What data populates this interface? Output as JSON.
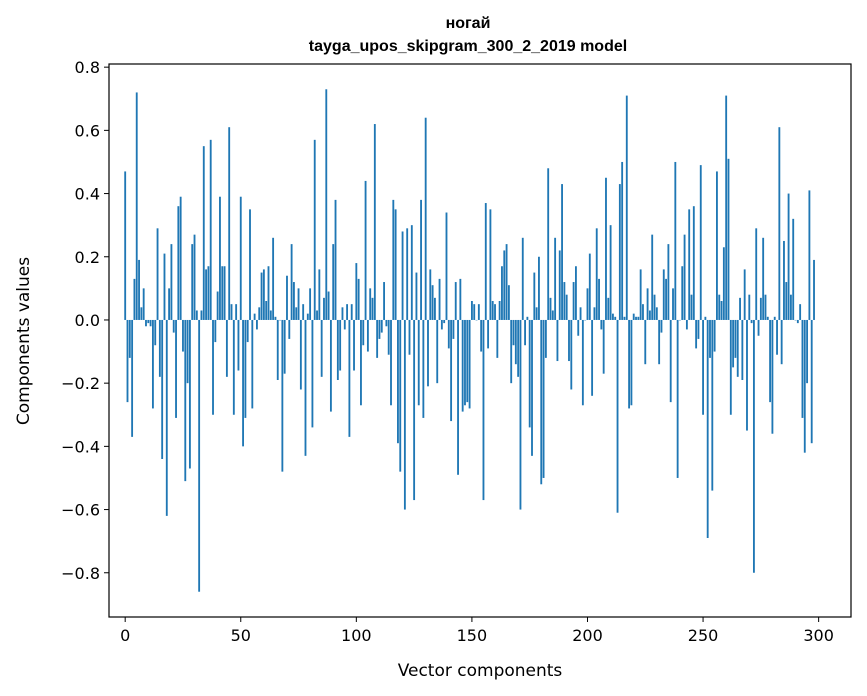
{
  "chart_data": {
    "type": "bar",
    "title": "ногай",
    "subtitle": "tayga_upos_skipgram_300_2_2019 model",
    "xlabel": "Vector components",
    "ylabel": "Components values",
    "xlim": [
      -7,
      314
    ],
    "ylim": [
      -0.94,
      0.81
    ],
    "x_ticks": [
      0,
      50,
      100,
      150,
      200,
      250,
      300
    ],
    "x_tick_labels": [
      "0",
      "50",
      "100",
      "150",
      "200",
      "250",
      "300"
    ],
    "y_ticks": [
      -0.8,
      -0.6,
      -0.4,
      -0.2,
      0.0,
      0.2,
      0.4,
      0.6,
      0.8
    ],
    "y_tick_labels": [
      "−0.8",
      "−0.6",
      "−0.4",
      "−0.2",
      "0.0",
      "0.2",
      "0.4",
      "0.6",
      "0.8"
    ],
    "bar_color": "#1f77b4",
    "values": [
      0.47,
      -0.26,
      -0.12,
      -0.37,
      0.13,
      0.72,
      0.19,
      0.04,
      0.1,
      -0.02,
      -0.01,
      -0.02,
      -0.28,
      -0.08,
      0.29,
      -0.18,
      -0.44,
      0.21,
      -0.62,
      0.1,
      0.24,
      -0.04,
      -0.31,
      0.36,
      0.39,
      -0.1,
      -0.51,
      -0.2,
      -0.47,
      0.24,
      0.27,
      0.03,
      -0.86,
      0.03,
      0.55,
      0.16,
      0.17,
      0.57,
      -0.3,
      -0.07,
      0.09,
      0.39,
      0.17,
      0.17,
      -0.18,
      0.61,
      0.05,
      -0.3,
      0.05,
      -0.16,
      0.39,
      -0.4,
      -0.31,
      -0.07,
      0.35,
      -0.28,
      0.02,
      -0.03,
      0.04,
      0.15,
      0.16,
      0.06,
      0.17,
      0.03,
      0.26,
      0.01,
      -0.19,
      0.0,
      -0.48,
      -0.17,
      0.14,
      -0.06,
      0.24,
      0.12,
      0.04,
      0.1,
      -0.22,
      0.05,
      -0.43,
      0.02,
      0.1,
      -0.34,
      0.57,
      0.03,
      0.16,
      -0.18,
      0.07,
      0.73,
      0.09,
      -0.29,
      0.24,
      0.38,
      -0.19,
      -0.16,
      0.04,
      -0.03,
      0.05,
      -0.37,
      0.05,
      -0.16,
      0.18,
      0.13,
      -0.27,
      -0.08,
      0.44,
      -0.1,
      0.1,
      0.07,
      0.62,
      -0.12,
      -0.06,
      -0.04,
      0.12,
      -0.02,
      -0.11,
      -0.27,
      0.38,
      0.35,
      -0.39,
      -0.48,
      0.28,
      -0.6,
      0.29,
      -0.11,
      0.3,
      -0.57,
      0.15,
      -0.27,
      0.38,
      -0.31,
      0.64,
      -0.21,
      0.16,
      0.11,
      0.07,
      -0.2,
      0.13,
      -0.03,
      -0.01,
      0.34,
      -0.09,
      -0.32,
      -0.06,
      0.12,
      -0.49,
      0.13,
      -0.29,
      -0.27,
      -0.26,
      -0.28,
      0.06,
      0.05,
      0.0,
      0.05,
      -0.1,
      -0.57,
      0.37,
      -0.09,
      0.35,
      0.06,
      0.05,
      -0.12,
      0.06,
      0.17,
      0.22,
      0.24,
      0.11,
      -0.2,
      -0.08,
      -0.14,
      -0.18,
      -0.6,
      0.26,
      -0.08,
      0.01,
      -0.34,
      -0.43,
      0.15,
      0.04,
      0.2,
      -0.52,
      -0.5,
      -0.12,
      0.48,
      0.07,
      0.03,
      0.26,
      -0.13,
      0.22,
      0.43,
      0.12,
      0.08,
      -0.13,
      -0.22,
      0.12,
      0.17,
      -0.05,
      0.04,
      -0.27,
      0.0,
      0.1,
      0.21,
      -0.24,
      0.04,
      0.29,
      0.13,
      -0.03,
      -0.17,
      0.45,
      0.07,
      0.3,
      0.02,
      0.01,
      -0.61,
      0.43,
      0.5,
      0.01,
      0.71,
      -0.28,
      -0.27,
      0.02,
      0.01,
      0.01,
      0.16,
      0.05,
      -0.14,
      0.1,
      0.03,
      0.27,
      0.08,
      0.04,
      -0.14,
      -0.04,
      0.16,
      0.13,
      0.24,
      -0.26,
      0.1,
      0.5,
      -0.5,
      0.0,
      0.17,
      0.27,
      -0.03,
      0.35,
      0.08,
      0.36,
      -0.09,
      -0.06,
      0.49,
      -0.3,
      0.01,
      -0.69,
      -0.12,
      -0.54,
      -0.1,
      0.47,
      0.08,
      0.06,
      0.23,
      0.71,
      0.51,
      -0.3,
      -0.15,
      -0.12,
      -0.18,
      0.07,
      -0.19,
      0.16,
      -0.35,
      0.08,
      -0.01,
      -0.8,
      0.29,
      -0.05,
      0.07,
      0.26,
      0.08,
      0.01,
      -0.26,
      -0.36,
      0.01,
      -0.11,
      0.61,
      -0.14,
      0.25,
      0.12,
      0.4,
      0.08,
      0.32,
      0.0,
      -0.01,
      0.05,
      -0.31,
      -0.42,
      -0.2,
      0.41,
      -0.39,
      0.19
    ]
  }
}
